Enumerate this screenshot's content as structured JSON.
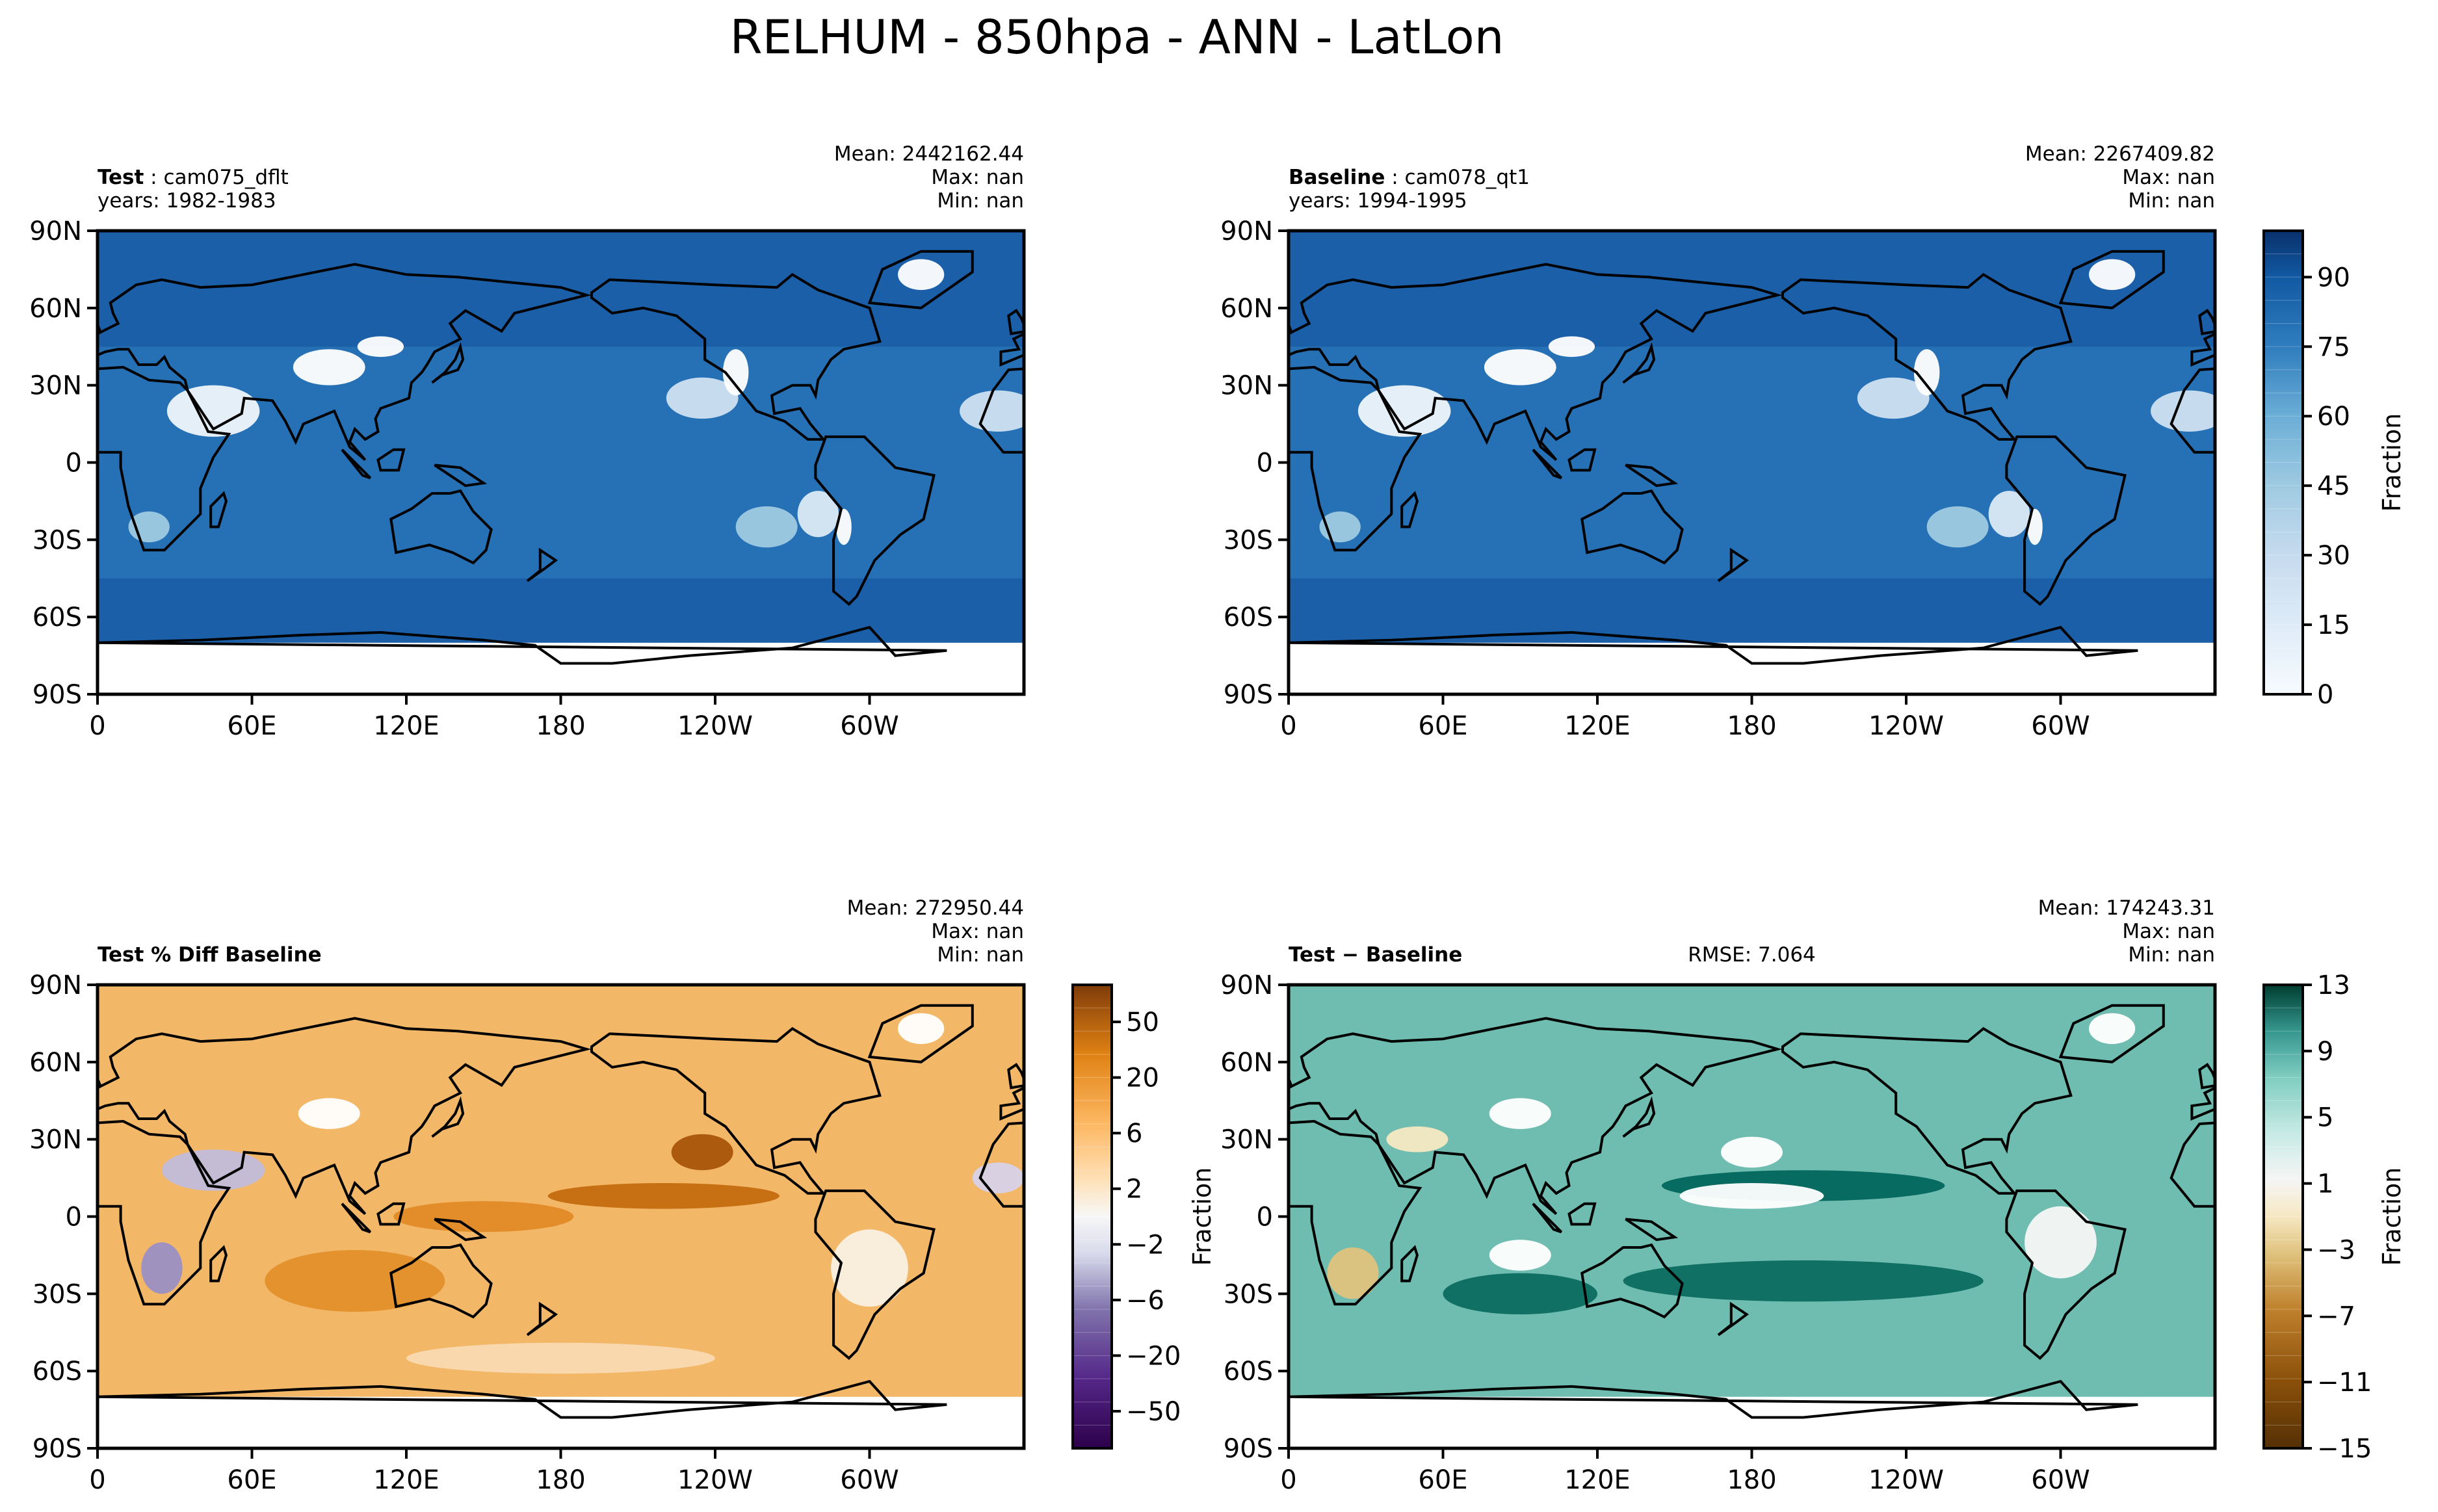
{
  "chart_data": {
    "type": "heatmap",
    "title": "RELHUM - 850hpa - ANN - LatLon",
    "panels": [
      {
        "id": "test",
        "label_bold": "Test",
        "label_rest": "cam075_dflt",
        "years": "years: 1982-1983",
        "mean": "Mean: 2442162.44",
        "max": "Max:   nan",
        "min": "Min:   nan",
        "rmse": "",
        "palette": "blues"
      },
      {
        "id": "baseline",
        "label_bold": "Baseline",
        "label_rest": "cam078_qt1",
        "years": "years: 1994-1995",
        "mean": "Mean: 2267409.82",
        "max": "Max:   nan",
        "min": "Min:   nan",
        "rmse": "",
        "palette": "blues"
      },
      {
        "id": "pctdiff",
        "label_bold": "Test % Diff Baseline",
        "label_rest": "",
        "years": "",
        "mean": "Mean: 272950.44",
        "max": "Max:   nan",
        "min": "Min:   nan",
        "rmse": "",
        "palette": "puor"
      },
      {
        "id": "diff",
        "label_bold": "Test − Baseline",
        "label_rest": "",
        "years": "",
        "mean": "Mean: 174243.31",
        "max": "Max:   nan",
        "min": "Min:   nan",
        "rmse": "RMSE: 7.064",
        "palette": "brbg"
      }
    ],
    "x_ticks": [
      "0",
      "60E",
      "120E",
      "180",
      "120W",
      "60W"
    ],
    "y_ticks": [
      "90N",
      "60N",
      "30N",
      "0",
      "30S",
      "60S",
      "90S"
    ],
    "xlim_deg_east": [
      0,
      360
    ],
    "ylim_deg": [
      -90,
      90
    ],
    "colorbars": [
      {
        "for": "baseline",
        "label": "Fraction",
        "ticks": [
          "90",
          "75",
          "60",
          "45",
          "30",
          "15",
          "0"
        ],
        "range": [
          0,
          100
        ]
      },
      {
        "for": "pctdiff",
        "label": "",
        "ticks": [
          "50",
          "20",
          "6",
          "2",
          "−2",
          "−6",
          "−20",
          "−50"
        ],
        "range": [
          -70,
          70
        ]
      },
      {
        "for": "diff",
        "label": "Fraction",
        "ticks": [
          "13",
          "9",
          "5",
          "1",
          "−3",
          "−7",
          "−11",
          "−15"
        ],
        "range": [
          -15,
          13
        ]
      }
    ],
    "extra_ylabel": {
      "for": "diff",
      "text": "Fraction"
    }
  }
}
